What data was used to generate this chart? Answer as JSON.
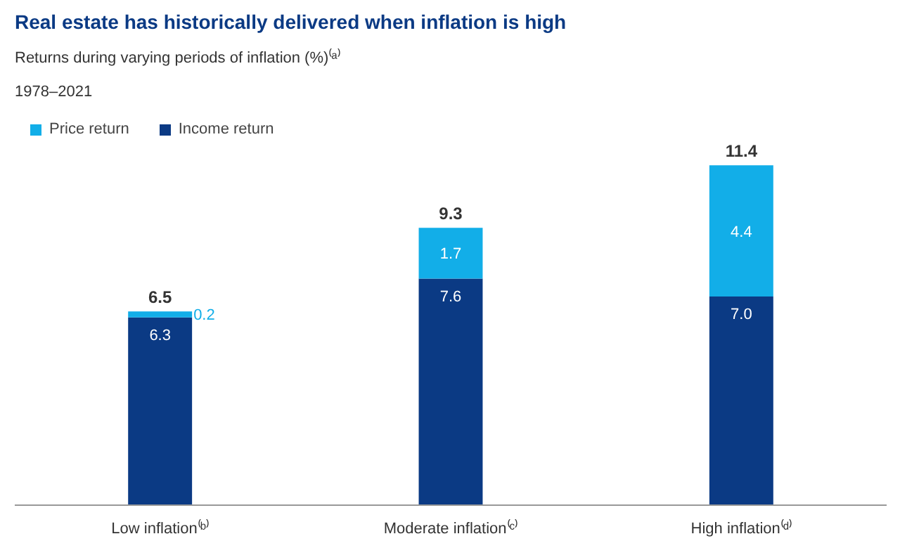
{
  "chart_data": {
    "type": "bar",
    "title": "Real estate has historically delivered when inflation is high",
    "subtitle": "Returns during varying periods of inflation (%)⁽ᵃ⁾",
    "annotations": [
      "1978–2021"
    ],
    "categories": [
      "Low inflation⁽ᵇ⁾",
      "Moderate inflation⁽ᶜ⁾",
      "High inflation⁽ᵈ⁾"
    ],
    "stacked": true,
    "series": [
      {
        "name": "Income return",
        "color": "#0b3a84",
        "values": [
          6.3,
          7.6,
          7.0
        ],
        "value_labels": [
          "6.3",
          "7.6",
          "7.0"
        ]
      },
      {
        "name": "Price return",
        "color": "#12aee8",
        "values": [
          0.2,
          1.7,
          4.4
        ],
        "value_labels": [
          "0.2",
          "1.7",
          "4.4"
        ]
      }
    ],
    "totals": [
      "6.5",
      "9.3",
      "11.4"
    ],
    "legend": "top left",
    "grid": false
  }
}
